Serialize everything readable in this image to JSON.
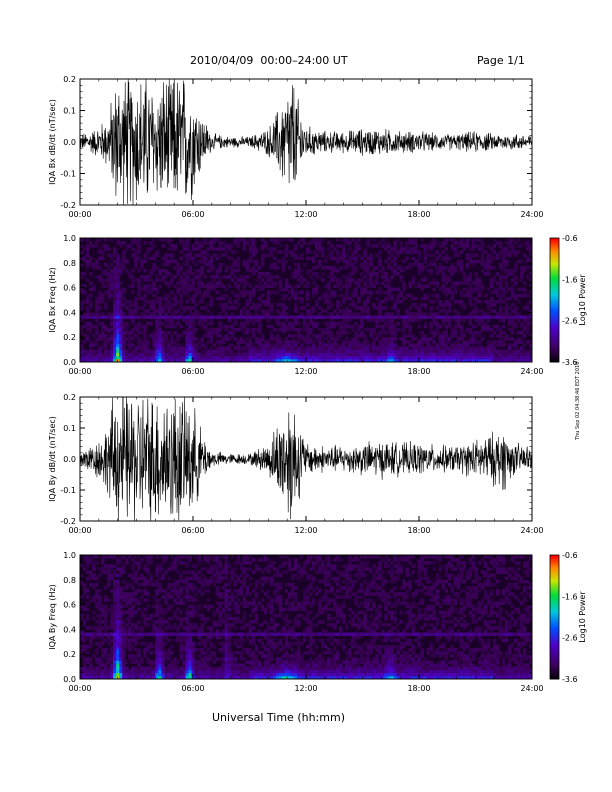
{
  "header": {
    "title": "2010/04/09  00:00–24:00 UT",
    "page": "Page 1/1"
  },
  "footer": {
    "xlabel": "Universal Time (hh:mm)",
    "timestamp": "Thu Sep 02 04:38:46 EDT 2010"
  },
  "chart_data": [
    {
      "type": "line",
      "ylabel": "IQA Bx dB/dt (nT/sec)",
      "xlim": [
        0,
        24
      ],
      "ylim": [
        -0.2,
        0.2
      ],
      "x_ticks": [
        "00:00",
        "06:00",
        "12:00",
        "18:00",
        "24:00"
      ],
      "y_ticks": [
        "-0.2",
        "-0.1",
        "0.0",
        "0.1",
        "0.2"
      ],
      "y_tick_values": [
        -0.2,
        -0.1,
        0.0,
        0.1,
        0.2
      ],
      "envelope": {
        "x": [
          0,
          0.5,
          1,
          1.5,
          1.8,
          2,
          2.5,
          3,
          3.5,
          4,
          4.5,
          5,
          5.5,
          6,
          6.5,
          7,
          8,
          9,
          10,
          10.5,
          11,
          11.3,
          11.6,
          12,
          13,
          14,
          15,
          16,
          17,
          18,
          19,
          20,
          21,
          22,
          23,
          24
        ],
        "amplitude": [
          0.03,
          0.04,
          0.06,
          0.1,
          0.2,
          0.25,
          0.25,
          0.25,
          0.25,
          0.2,
          0.25,
          0.25,
          0.25,
          0.2,
          0.1,
          0.03,
          0.02,
          0.02,
          0.05,
          0.12,
          0.2,
          0.25,
          0.15,
          0.06,
          0.04,
          0.04,
          0.05,
          0.05,
          0.04,
          0.04,
          0.03,
          0.03,
          0.04,
          0.03,
          0.03,
          0.03
        ]
      }
    },
    {
      "type": "heatmap",
      "ylabel": "IQA Bx Freq (Hz)",
      "xlim": [
        0,
        24
      ],
      "ylim": [
        0,
        1.0
      ],
      "x_ticks": [
        "00:00",
        "06:00",
        "12:00",
        "18:00",
        "24:00"
      ],
      "y_ticks": [
        "0.0",
        "0.2",
        "0.4",
        "0.6",
        "0.8",
        "1.0"
      ],
      "y_tick_values": [
        0,
        0.2,
        0.4,
        0.6,
        0.8,
        1.0
      ],
      "colorbar": {
        "label": "Log10 Power",
        "ticks": [
          "-0.6",
          "-1.6",
          "-2.6",
          "-3.6"
        ],
        "min": -3.6,
        "max": -0.6
      },
      "hot_spots": [
        {
          "t": 2.0,
          "width": 0.35,
          "fmax": 0.55,
          "strength": 1.0
        },
        {
          "t": 4.2,
          "width": 0.3,
          "fmax": 0.3,
          "strength": 0.7
        },
        {
          "t": 5.8,
          "width": 0.3,
          "fmax": 0.25,
          "strength": 0.8
        },
        {
          "t": 11.0,
          "width": 0.8,
          "fmax": 0.1,
          "strength": 0.5
        },
        {
          "t": 16.5,
          "width": 0.3,
          "fmax": 0.25,
          "strength": 0.35
        }
      ],
      "line_freq": 0.37
    },
    {
      "type": "line",
      "ylabel": "IQA By dB/dt (nT/sec)",
      "xlim": [
        0,
        24
      ],
      "ylim": [
        -0.2,
        0.2
      ],
      "x_ticks": [
        "00:00",
        "06:00",
        "12:00",
        "18:00",
        "24:00"
      ],
      "y_ticks": [
        "-0.2",
        "-0.1",
        "0.0",
        "0.1",
        "0.2"
      ],
      "y_tick_values": [
        -0.2,
        -0.1,
        0.0,
        0.1,
        0.2
      ],
      "envelope": {
        "x": [
          0,
          0.5,
          1,
          1.5,
          1.8,
          2,
          2.5,
          3,
          3.5,
          4,
          4.5,
          5,
          5.5,
          6,
          6.5,
          7,
          8,
          9,
          10,
          10.5,
          11,
          11.3,
          11.6,
          12,
          13,
          14,
          15,
          16,
          17,
          18,
          19,
          20,
          21,
          22,
          22.5,
          23,
          24
        ],
        "amplitude": [
          0.04,
          0.05,
          0.08,
          0.13,
          0.25,
          0.25,
          0.25,
          0.25,
          0.25,
          0.25,
          0.25,
          0.25,
          0.25,
          0.2,
          0.1,
          0.03,
          0.02,
          0.02,
          0.06,
          0.14,
          0.22,
          0.25,
          0.15,
          0.06,
          0.05,
          0.05,
          0.06,
          0.07,
          0.06,
          0.06,
          0.05,
          0.05,
          0.07,
          0.1,
          0.12,
          0.06,
          0.05
        ]
      }
    },
    {
      "type": "heatmap",
      "ylabel": "IQA By Freq (Hz)",
      "xlim": [
        0,
        24
      ],
      "ylim": [
        0,
        1.0
      ],
      "x_ticks": [
        "00:00",
        "06:00",
        "12:00",
        "18:00",
        "24:00"
      ],
      "y_ticks": [
        "0.0",
        "0.2",
        "0.4",
        "0.6",
        "0.8",
        "1.0"
      ],
      "y_tick_values": [
        0,
        0.2,
        0.4,
        0.6,
        0.8,
        1.0
      ],
      "colorbar": {
        "label": "Log10 Power",
        "ticks": [
          "-0.6",
          "-1.6",
          "-2.6",
          "-3.6"
        ],
        "min": -3.6,
        "max": -0.6
      },
      "hot_spots": [
        {
          "t": 2.0,
          "width": 0.35,
          "fmax": 0.6,
          "strength": 1.0
        },
        {
          "t": 4.2,
          "width": 0.3,
          "fmax": 0.35,
          "strength": 0.8
        },
        {
          "t": 5.8,
          "width": 0.3,
          "fmax": 0.35,
          "strength": 0.85
        },
        {
          "t": 11.0,
          "width": 0.9,
          "fmax": 0.12,
          "strength": 0.55
        },
        {
          "t": 16.5,
          "width": 0.4,
          "fmax": 0.28,
          "strength": 0.4
        },
        {
          "t": 7.8,
          "width": 0.2,
          "fmax": 0.85,
          "strength": 0.25
        }
      ],
      "line_freq": 0.37
    }
  ]
}
